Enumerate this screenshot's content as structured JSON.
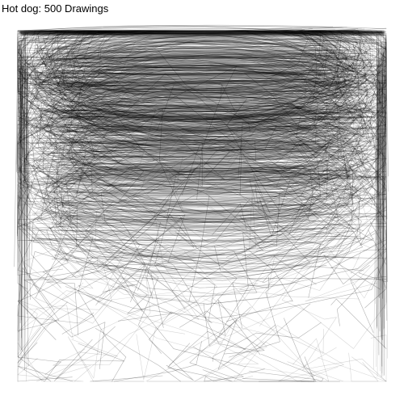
{
  "title": "Hot dog: 500 Drawings",
  "drawing_count": 500,
  "stroke_color": "#000000"
}
